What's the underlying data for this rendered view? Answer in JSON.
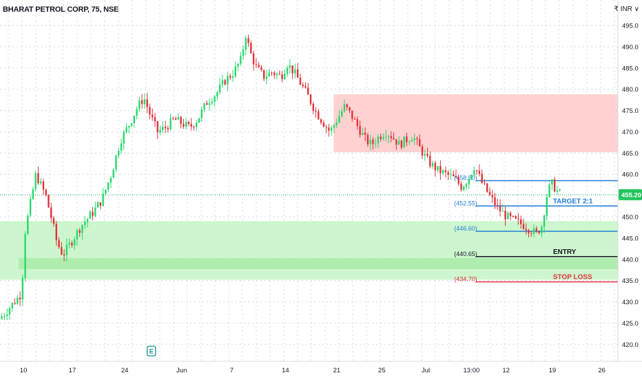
{
  "header": {
    "title": "BHARAT PETROL CORP, 75, NSE",
    "currency": "₹ INR ∨"
  },
  "colors": {
    "up": "#26d96b",
    "down": "#e0323a",
    "supply_zone": "#ffcccc",
    "demand_zone": "#c9f5c9",
    "demand_band": "#a6eba6",
    "target_line": "#1e7ed6",
    "entry_line": "#131722",
    "stop_line": "#e0323a",
    "price_badge": "#22c55e",
    "earnings_icon": "#0d9488",
    "grid": "#d4d8e0"
  },
  "chart_data": {
    "type": "candlestick",
    "title": "BHARAT PETROL CORP, 75, NSE",
    "ylim": [
      416,
      501
    ],
    "y_ticks": [
      420,
      425,
      430,
      435,
      440,
      445,
      450,
      455,
      460,
      465,
      470,
      475,
      480,
      485,
      490,
      495
    ],
    "y_tick_labels": [
      "420.0",
      "425.0",
      "430.0",
      "435.0",
      "440.0",
      "445.0",
      "450.0",
      "455.0",
      "460.0",
      "465.0",
      "470.0",
      "475.0",
      "480.0",
      "485.0",
      "490.0",
      "495.0"
    ],
    "x_tick_labels": [
      "10",
      "17",
      "24",
      "Jun",
      "7",
      "14",
      "21",
      "25",
      "Jul",
      "13:00",
      "12",
      "19",
      "26"
    ],
    "x_range": [
      0,
      100
    ],
    "x_ticks": [
      3.8,
      11.7,
      20.2,
      29.4,
      37.5,
      46.2,
      54.5,
      61.8,
      68.9,
      76.3,
      81.9,
      89.4,
      97.4
    ],
    "current_price": 455.2,
    "current_price_label": "455.20",
    "price_path": [
      [
        0,
        426
      ],
      [
        3.5,
        432
      ],
      [
        4,
        446
      ],
      [
        5.8,
        460
      ],
      [
        7.4,
        455
      ],
      [
        8.6,
        448
      ],
      [
        9.2,
        444
      ],
      [
        10.2,
        441
      ],
      [
        11.5,
        444
      ],
      [
        13.2,
        448
      ],
      [
        15,
        451
      ],
      [
        16.5,
        454
      ],
      [
        18,
        460
      ],
      [
        19.5,
        468
      ],
      [
        21,
        472
      ],
      [
        22.3,
        476
      ],
      [
        23.3,
        478
      ],
      [
        24.3,
        474
      ],
      [
        25.5,
        470
      ],
      [
        26.8,
        471
      ],
      [
        28.2,
        473
      ],
      [
        29.4,
        472
      ],
      [
        30.7,
        471
      ],
      [
        32,
        473
      ],
      [
        33.5,
        477
      ],
      [
        35,
        479
      ],
      [
        36.4,
        482
      ],
      [
        37.8,
        484
      ],
      [
        39,
        487
      ],
      [
        39.8,
        493
      ],
      [
        40.4,
        489
      ],
      [
        41.5,
        485
      ],
      [
        42.7,
        483
      ],
      [
        44,
        484
      ],
      [
        45.5,
        483
      ],
      [
        46.5,
        486
      ],
      [
        47.6,
        484
      ],
      [
        48.8,
        481
      ],
      [
        50,
        478
      ],
      [
        51,
        475
      ],
      [
        52.4,
        472
      ],
      [
        53.4,
        470
      ],
      [
        54.6,
        473
      ],
      [
        55.8,
        476
      ],
      [
        56.8,
        474
      ],
      [
        58,
        471
      ],
      [
        59.2,
        468
      ],
      [
        60.2,
        467
      ],
      [
        61.4,
        469
      ],
      [
        62.4,
        470
      ],
      [
        63.4,
        469
      ],
      [
        64.6,
        467
      ],
      [
        65.6,
        468
      ],
      [
        66.8,
        469
      ],
      [
        68,
        466
      ],
      [
        69.3,
        463
      ],
      [
        70.8,
        461
      ],
      [
        72.2,
        460
      ],
      [
        73.6,
        459
      ],
      [
        74.7,
        457
      ],
      [
        75.8,
        459
      ],
      [
        76.8,
        462
      ],
      [
        78,
        458
      ],
      [
        79.2,
        455
      ],
      [
        80.6,
        452
      ],
      [
        82,
        450
      ],
      [
        83.4,
        449
      ],
      [
        84.8,
        448
      ],
      [
        85.8,
        447
      ],
      [
        86.8,
        446
      ],
      [
        87.7,
        448
      ],
      [
        88.5,
        455
      ],
      [
        89.2,
        458
      ],
      [
        90.2,
        456
      ],
      [
        91,
        455
      ]
    ],
    "zones": [
      {
        "name": "supply-zone",
        "x": [
          54,
          100
        ],
        "y": [
          465.2,
          478.8
        ]
      },
      {
        "name": "demand-zone",
        "x": [
          0,
          100
        ],
        "y": [
          435.2,
          449.0
        ]
      },
      {
        "name": "demand-band",
        "x": [
          3,
          100
        ],
        "y": [
          437.7,
          440.3
        ]
      }
    ],
    "levels": [
      {
        "name": "stop-loss",
        "value": 434.7,
        "value_label": "(434.70)",
        "label": "STOP LOSS",
        "color": "#e0323a"
      },
      {
        "name": "entry",
        "value": 440.65,
        "value_label": "(440.65)",
        "label": "ENTRY",
        "color": "#131722"
      },
      {
        "name": "lower-target",
        "value": 446.6,
        "value_label": "(446.60)",
        "label": "",
        "color": "#1e7ed6"
      },
      {
        "name": "target",
        "value": 452.55,
        "value_label": "(452.55)",
        "label": "TARGET 2:1",
        "color": "#1e7ed6"
      },
      {
        "name": "upper-target",
        "value": 458.5,
        "value_label": "(458.50)",
        "label": "",
        "color": "#1e7ed6"
      }
    ],
    "earnings_marker": {
      "x": 24.5,
      "label": "E"
    },
    "grid": true
  }
}
